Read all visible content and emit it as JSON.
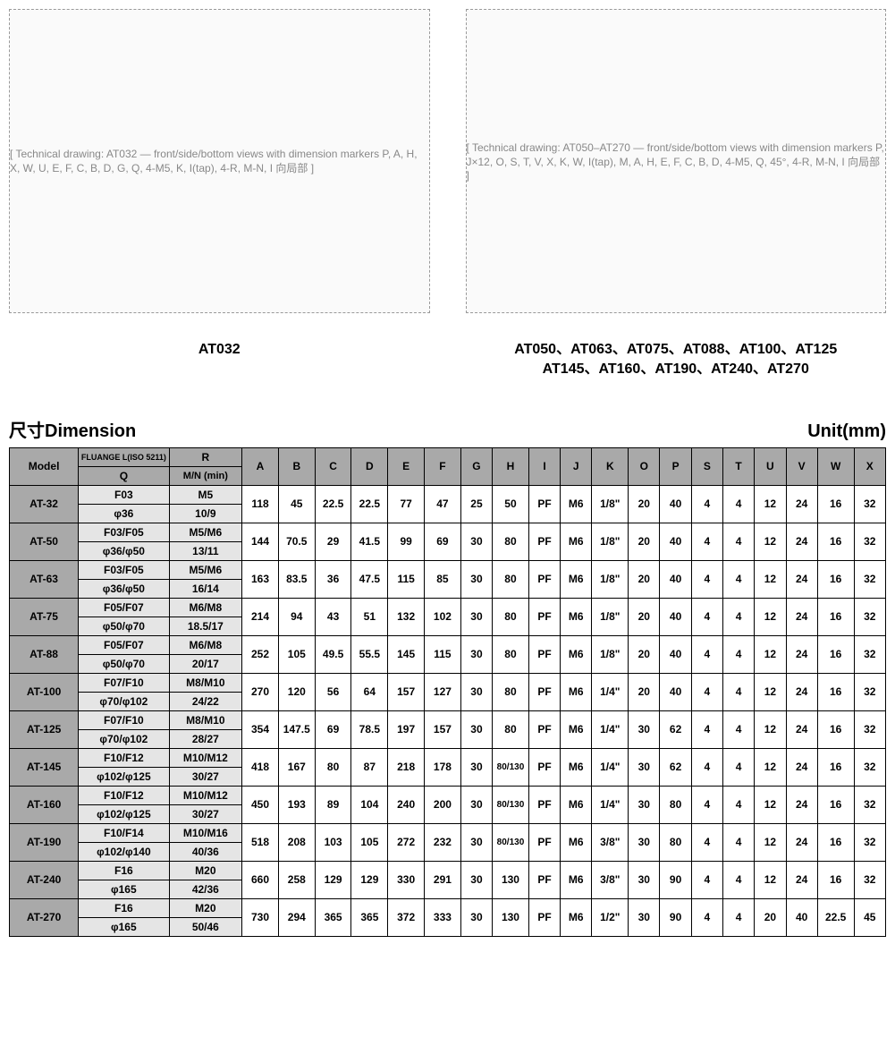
{
  "diagrams": {
    "left_caption": "AT032",
    "right_caption": "AT050、AT063、AT075、AT088、AT100、AT125\nAT145、AT160、AT190、AT240、AT270",
    "left_placeholder": "[ Technical drawing: AT032 — front/side/bottom views with dimension markers P, A, H, X, W, U, E, F, C, B, D, G, Q, 4-M5, K, I(tap), 4-R, M-N, I 向局部 ]",
    "right_placeholder": "[ Technical drawing: AT050–AT270 — front/side/bottom views with dimension markers P, J×12, O, S, T, V, X, K, W, I(tap), M, A, H, E, F, C, B, D, 4-M5, Q, 45°, 4-R, M-N, I 向局部 ]"
  },
  "section": {
    "title": "尺寸Dimension",
    "unit": "Unit(mm)"
  },
  "table": {
    "headers": {
      "model": "Model",
      "fluange": "FLUANGE L(ISO 5211)",
      "R": "R",
      "Q": "Q",
      "MN": "M/N (min)",
      "cols": [
        "A",
        "B",
        "C",
        "D",
        "E",
        "F",
        "G",
        "H",
        "I",
        "J",
        "K",
        "O",
        "P",
        "S",
        "T",
        "U",
        "V",
        "W",
        "X"
      ]
    },
    "rows": [
      {
        "model": "AT-32",
        "flu": "F03",
        "r": "M5",
        "q": "φ36",
        "mn": "10/9",
        "v": [
          "118",
          "45",
          "22.5",
          "22.5",
          "77",
          "47",
          "25",
          "50",
          "PF",
          "M6",
          "1/8\"",
          "20",
          "40",
          "4",
          "4",
          "12",
          "24",
          "16",
          "32"
        ]
      },
      {
        "model": "AT-50",
        "flu": "F03/F05",
        "r": "M5/M6",
        "q": "φ36/φ50",
        "mn": "13/11",
        "v": [
          "144",
          "70.5",
          "29",
          "41.5",
          "99",
          "69",
          "30",
          "80",
          "PF",
          "M6",
          "1/8\"",
          "20",
          "40",
          "4",
          "4",
          "12",
          "24",
          "16",
          "32"
        ]
      },
      {
        "model": "AT-63",
        "flu": "F03/F05",
        "r": "M5/M6",
        "q": "φ36/φ50",
        "mn": "16/14",
        "v": [
          "163",
          "83.5",
          "36",
          "47.5",
          "115",
          "85",
          "30",
          "80",
          "PF",
          "M6",
          "1/8\"",
          "20",
          "40",
          "4",
          "4",
          "12",
          "24",
          "16",
          "32"
        ]
      },
      {
        "model": "AT-75",
        "flu": "F05/F07",
        "r": "M6/M8",
        "q": "φ50/φ70",
        "mn": "18.5/17",
        "v": [
          "214",
          "94",
          "43",
          "51",
          "132",
          "102",
          "30",
          "80",
          "PF",
          "M6",
          "1/8\"",
          "20",
          "40",
          "4",
          "4",
          "12",
          "24",
          "16",
          "32"
        ]
      },
      {
        "model": "AT-88",
        "flu": "F05/F07",
        "r": "M6/M8",
        "q": "φ50/φ70",
        "mn": "20/17",
        "v": [
          "252",
          "105",
          "49.5",
          "55.5",
          "145",
          "115",
          "30",
          "80",
          "PF",
          "M6",
          "1/8\"",
          "20",
          "40",
          "4",
          "4",
          "12",
          "24",
          "16",
          "32"
        ]
      },
      {
        "model": "AT-100",
        "flu": "F07/F10",
        "r": "M8/M10",
        "q": "φ70/φ102",
        "mn": "24/22",
        "v": [
          "270",
          "120",
          "56",
          "64",
          "157",
          "127",
          "30",
          "80",
          "PF",
          "M6",
          "1/4\"",
          "20",
          "40",
          "4",
          "4",
          "12",
          "24",
          "16",
          "32"
        ]
      },
      {
        "model": "AT-125",
        "flu": "F07/F10",
        "r": "M8/M10",
        "q": "φ70/φ102",
        "mn": "28/27",
        "v": [
          "354",
          "147.5",
          "69",
          "78.5",
          "197",
          "157",
          "30",
          "80",
          "PF",
          "M6",
          "1/4\"",
          "30",
          "62",
          "4",
          "4",
          "12",
          "24",
          "16",
          "32"
        ]
      },
      {
        "model": "AT-145",
        "flu": "F10/F12",
        "r": "M10/M12",
        "q": "φ102/φ125",
        "mn": "30/27",
        "v": [
          "418",
          "167",
          "80",
          "87",
          "218",
          "178",
          "30",
          "80/130",
          "PF",
          "M6",
          "1/4\"",
          "30",
          "62",
          "4",
          "4",
          "12",
          "24",
          "16",
          "32"
        ]
      },
      {
        "model": "AT-160",
        "flu": "F10/F12",
        "r": "M10/M12",
        "q": "φ102/φ125",
        "mn": "30/27",
        "v": [
          "450",
          "193",
          "89",
          "104",
          "240",
          "200",
          "30",
          "80/130",
          "PF",
          "M6",
          "1/4\"",
          "30",
          "80",
          "4",
          "4",
          "12",
          "24",
          "16",
          "32"
        ]
      },
      {
        "model": "AT-190",
        "flu": "F10/F14",
        "r": "M10/M16",
        "q": "φ102/φ140",
        "mn": "40/36",
        "v": [
          "518",
          "208",
          "103",
          "105",
          "272",
          "232",
          "30",
          "80/130",
          "PF",
          "M6",
          "3/8\"",
          "30",
          "80",
          "4",
          "4",
          "12",
          "24",
          "16",
          "32"
        ]
      },
      {
        "model": "AT-240",
        "flu": "F16",
        "r": "M20",
        "q": "φ165",
        "mn": "42/36",
        "v": [
          "660",
          "258",
          "129",
          "129",
          "330",
          "291",
          "30",
          "130",
          "PF",
          "M6",
          "3/8\"",
          "30",
          "90",
          "4",
          "4",
          "12",
          "24",
          "16",
          "32"
        ]
      },
      {
        "model": "AT-270",
        "flu": "F16",
        "r": "M20",
        "q": "φ165",
        "mn": "50/46",
        "v": [
          "730",
          "294",
          "365",
          "365",
          "372",
          "333",
          "30",
          "130",
          "PF",
          "M6",
          "1/2\"",
          "30",
          "90",
          "4",
          "4",
          "20",
          "40",
          "22.5",
          "45"
        ]
      }
    ]
  },
  "colors": {
    "header_bg": "#a9a9a9",
    "q_bg": "#e5e5e5",
    "border": "#000000",
    "background": "#ffffff"
  }
}
